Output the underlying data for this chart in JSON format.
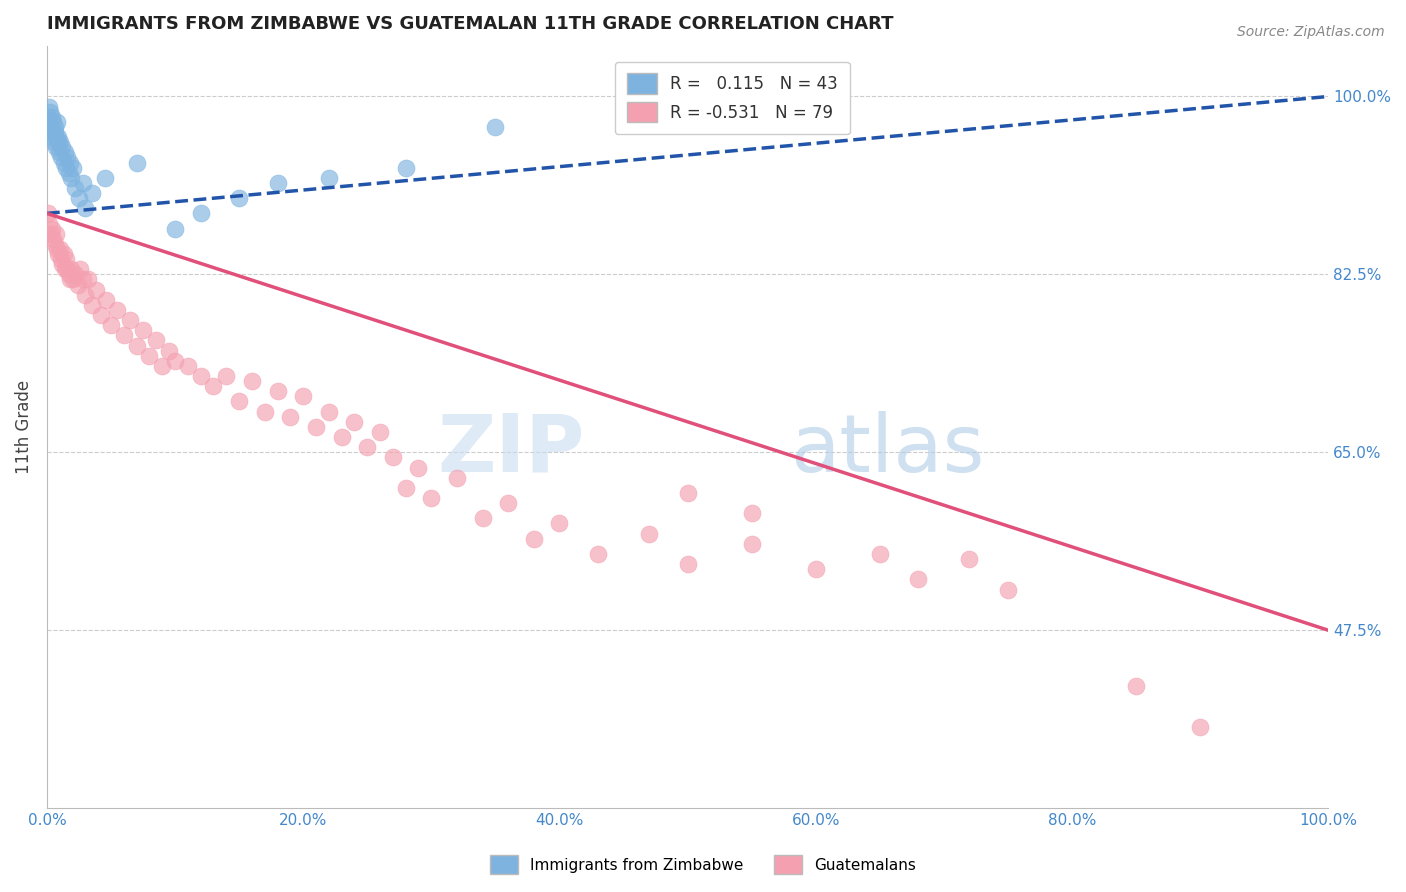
{
  "title": "IMMIGRANTS FROM ZIMBABWE VS GUATEMALAN 11TH GRADE CORRELATION CHART",
  "source": "Source: ZipAtlas.com",
  "ylabel": "11th Grade",
  "ylabel_right_ticks": [
    "100.0%",
    "82.5%",
    "65.0%",
    "47.5%"
  ],
  "ylabel_right_values": [
    100.0,
    82.5,
    65.0,
    47.5
  ],
  "legend_r1": "R =  0.115",
  "legend_n1": "N = 43",
  "legend_r2": "R = -0.531",
  "legend_n2": "N = 79",
  "blue_color": "#7EB3E0",
  "pink_color": "#F4A0B0",
  "blue_line_color": "#2255AA",
  "pink_line_color": "#E0507A",
  "watermark_zip": "ZIP",
  "watermark_atlas": "atlas",
  "blue_scatter_x": [
    0.1,
    0.15,
    0.2,
    0.25,
    0.3,
    0.35,
    0.4,
    0.45,
    0.5,
    0.55,
    0.6,
    0.65,
    0.7,
    0.75,
    0.8,
    0.85,
    0.9,
    0.95,
    1.0,
    1.1,
    1.2,
    1.3,
    1.4,
    1.5,
    1.6,
    1.7,
    1.8,
    1.9,
    2.0,
    2.2,
    2.5,
    2.8,
    3.0,
    3.5,
    4.5,
    7.0,
    10.0,
    12.0,
    15.0,
    18.0,
    22.0,
    28.0,
    35.0
  ],
  "blue_scatter_y": [
    98.0,
    99.0,
    97.5,
    98.5,
    96.5,
    97.0,
    98.0,
    96.0,
    97.5,
    95.5,
    96.5,
    97.0,
    95.0,
    96.0,
    97.5,
    95.5,
    96.0,
    94.5,
    95.5,
    94.0,
    95.0,
    93.5,
    94.5,
    93.0,
    94.0,
    92.5,
    93.5,
    92.0,
    93.0,
    91.0,
    90.0,
    91.5,
    89.0,
    90.5,
    92.0,
    93.5,
    87.0,
    88.5,
    90.0,
    91.5,
    92.0,
    93.0,
    97.0
  ],
  "pink_scatter_x": [
    0.1,
    0.2,
    0.3,
    0.4,
    0.5,
    0.6,
    0.7,
    0.8,
    0.9,
    1.0,
    1.1,
    1.2,
    1.3,
    1.4,
    1.5,
    1.6,
    1.7,
    1.8,
    1.9,
    2.0,
    2.2,
    2.4,
    2.6,
    2.8,
    3.0,
    3.2,
    3.5,
    3.8,
    4.2,
    4.6,
    5.0,
    5.5,
    6.0,
    6.5,
    7.0,
    7.5,
    8.0,
    8.5,
    9.0,
    9.5,
    10.0,
    11.0,
    12.0,
    13.0,
    14.0,
    15.0,
    16.0,
    17.0,
    18.0,
    19.0,
    20.0,
    21.0,
    22.0,
    23.0,
    24.0,
    25.0,
    26.0,
    27.0,
    28.0,
    29.0,
    30.0,
    32.0,
    34.0,
    36.0,
    38.0,
    40.0,
    43.0,
    47.0,
    50.0,
    55.0,
    60.0,
    65.0,
    68.0,
    72.0,
    50.0,
    75.0,
    55.0,
    85.0,
    90.0
  ],
  "pink_scatter_y": [
    88.5,
    87.5,
    86.5,
    87.0,
    86.0,
    85.5,
    86.5,
    85.0,
    84.5,
    85.0,
    84.0,
    83.5,
    84.5,
    83.0,
    84.0,
    83.0,
    82.5,
    82.0,
    83.0,
    82.0,
    82.5,
    81.5,
    83.0,
    82.0,
    80.5,
    82.0,
    79.5,
    81.0,
    78.5,
    80.0,
    77.5,
    79.0,
    76.5,
    78.0,
    75.5,
    77.0,
    74.5,
    76.0,
    73.5,
    75.0,
    74.0,
    73.5,
    72.5,
    71.5,
    72.5,
    70.0,
    72.0,
    69.0,
    71.0,
    68.5,
    70.5,
    67.5,
    69.0,
    66.5,
    68.0,
    65.5,
    67.0,
    64.5,
    61.5,
    63.5,
    60.5,
    62.5,
    58.5,
    60.0,
    56.5,
    58.0,
    55.0,
    57.0,
    54.0,
    56.0,
    53.5,
    55.0,
    52.5,
    54.5,
    61.0,
    51.5,
    59.0,
    42.0,
    38.0
  ],
  "xlim": [
    0.0,
    100.0
  ],
  "ylim": [
    30.0,
    105.0
  ],
  "background_color": "#FFFFFF",
  "grid_color": "#CCCCCC",
  "blue_line_x": [
    0.0,
    100.0
  ],
  "blue_line_y": [
    88.5,
    100.0
  ],
  "pink_line_x": [
    0.0,
    100.0
  ],
  "pink_line_y": [
    88.5,
    47.5
  ]
}
